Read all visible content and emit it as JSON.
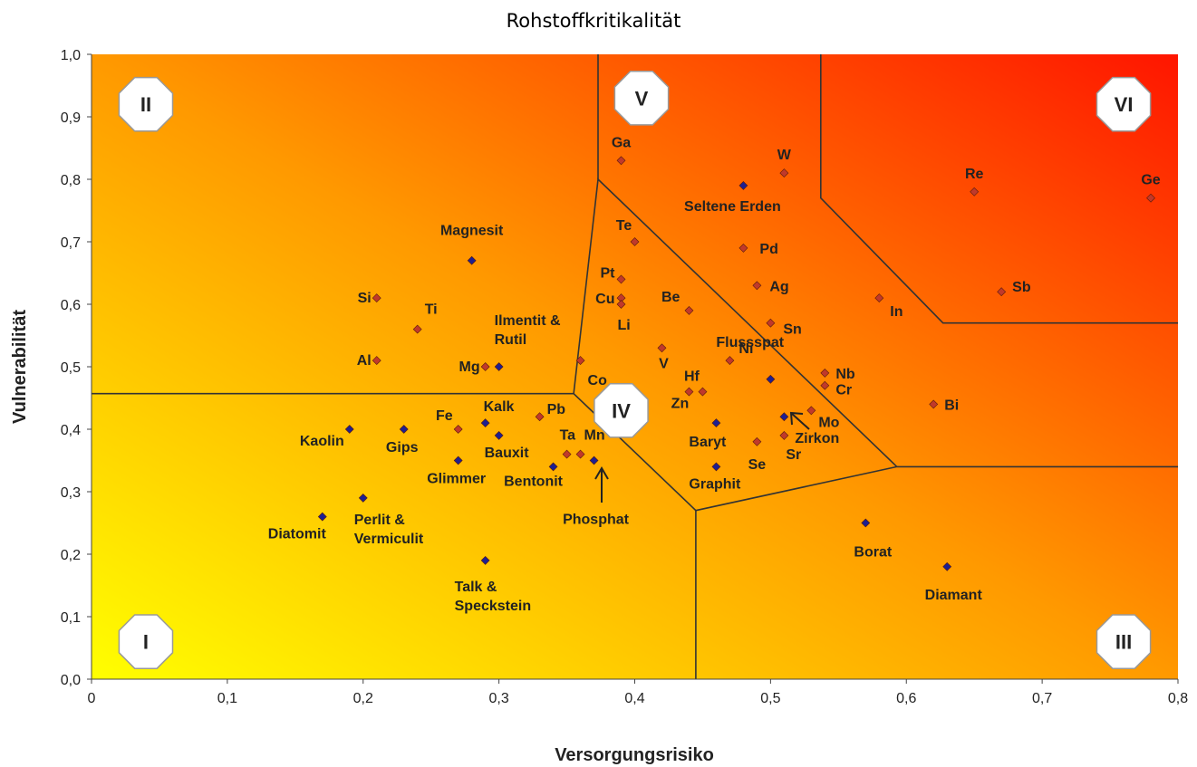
{
  "chart_data": {
    "type": "scatter",
    "title": "Rohstoffkritikalität",
    "xlabel": "Versorgungsrisiko",
    "ylabel": "Vulnerabilität",
    "xlim": [
      0,
      0.8
    ],
    "ylim": [
      0,
      1.0
    ],
    "xticks": [
      "0",
      "0,1",
      "0,2",
      "0,3",
      "0,4",
      "0,5",
      "0,6",
      "0,7",
      "0,8"
    ],
    "yticks": [
      "0,0",
      "0,1",
      "0,2",
      "0,3",
      "0,4",
      "0,5",
      "0,6",
      "0,7",
      "0,8",
      "0,9",
      "1,0"
    ],
    "background": {
      "low_color": "#ffff00",
      "mid_color": "#ff9900",
      "high_color": "#ff1500"
    },
    "marker_colors": {
      "red": "#c0392b",
      "blue": "#1f1f8f"
    },
    "zones": [
      {
        "label": "I",
        "x": 0.04,
        "y": 0.06
      },
      {
        "label": "II",
        "x": 0.04,
        "y": 0.92
      },
      {
        "label": "III",
        "x": 0.76,
        "y": 0.06
      },
      {
        "label": "IV",
        "x": 0.39,
        "y": 0.43
      },
      {
        "label": "V",
        "x": 0.405,
        "y": 0.93
      },
      {
        "label": "VI",
        "x": 0.76,
        "y": 0.92
      }
    ],
    "boundaries": [
      [
        [
          0,
          0.457
        ],
        [
          0.355,
          0.457
        ],
        [
          0.445,
          0.27
        ],
        [
          0.593,
          0.34
        ],
        [
          0.8,
          0.34
        ]
      ],
      [
        [
          0.355,
          0.457
        ],
        [
          0.373,
          0.8
        ],
        [
          0.593,
          0.34
        ]
      ],
      [
        [
          0.373,
          0.8
        ],
        [
          0.373,
          1.0
        ]
      ],
      [
        [
          0.445,
          0.27
        ],
        [
          0.445,
          0.0
        ]
      ],
      [
        [
          0.537,
          1.0
        ],
        [
          0.537,
          0.77
        ],
        [
          0.627,
          0.57
        ],
        [
          0.8,
          0.57
        ]
      ]
    ],
    "series": [
      {
        "marker": "red",
        "points": [
          {
            "label": "Ga",
            "x": 0.39,
            "y": 0.83
          },
          {
            "label": "W",
            "x": 0.51,
            "y": 0.81
          },
          {
            "label": "Re",
            "x": 0.65,
            "y": 0.78
          },
          {
            "label": "Ge",
            "x": 0.78,
            "y": 0.77
          },
          {
            "label": "Te",
            "x": 0.4,
            "y": 0.7
          },
          {
            "label": "Pd",
            "x": 0.48,
            "y": 0.69
          },
          {
            "label": "Pt",
            "x": 0.39,
            "y": 0.64
          },
          {
            "label": "Ag",
            "x": 0.49,
            "y": 0.63
          },
          {
            "label": "Sb",
            "x": 0.67,
            "y": 0.62
          },
          {
            "label": "Si",
            "x": 0.21,
            "y": 0.61
          },
          {
            "label": "Cu",
            "x": 0.39,
            "y": 0.61
          },
          {
            "label": "In",
            "x": 0.58,
            "y": 0.61
          },
          {
            "label": "Li",
            "x": 0.39,
            "y": 0.6
          },
          {
            "label": "Be",
            "x": 0.44,
            "y": 0.59
          },
          {
            "label": "Sn",
            "x": 0.5,
            "y": 0.57
          },
          {
            "label": "Ti",
            "x": 0.24,
            "y": 0.56
          },
          {
            "label": "V",
            "x": 0.42,
            "y": 0.53
          },
          {
            "label": "Al",
            "x": 0.21,
            "y": 0.51
          },
          {
            "label": "Co",
            "x": 0.36,
            "y": 0.51
          },
          {
            "label": "Ni",
            "x": 0.47,
            "y": 0.51
          },
          {
            "label": "Mg",
            "x": 0.29,
            "y": 0.5
          },
          {
            "label": "Nb",
            "x": 0.54,
            "y": 0.49
          },
          {
            "label": "Cr",
            "x": 0.54,
            "y": 0.47
          },
          {
            "label": "Zn",
            "x": 0.44,
            "y": 0.46
          },
          {
            "label": "Hf",
            "x": 0.45,
            "y": 0.46
          },
          {
            "label": "Bi",
            "x": 0.62,
            "y": 0.44
          },
          {
            "label": "Mo",
            "x": 0.53,
            "y": 0.43
          },
          {
            "label": "Pb",
            "x": 0.33,
            "y": 0.42
          },
          {
            "label": "Fe",
            "x": 0.27,
            "y": 0.4
          },
          {
            "label": "Sr",
            "x": 0.51,
            "y": 0.39
          },
          {
            "label": "Se",
            "x": 0.49,
            "y": 0.38
          },
          {
            "label": "Ta",
            "x": 0.35,
            "y": 0.36
          },
          {
            "label": "Mn",
            "x": 0.36,
            "y": 0.36
          }
        ]
      },
      {
        "marker": "blue",
        "points": [
          {
            "label": "Seltene Erden",
            "x": 0.48,
            "y": 0.79
          },
          {
            "label": "Magnesit",
            "x": 0.28,
            "y": 0.67
          },
          {
            "label": "Ilmentit & Rutil",
            "x": 0.3,
            "y": 0.5
          },
          {
            "label": "Flussspat",
            "x": 0.5,
            "y": 0.48
          },
          {
            "label": "Zirkon",
            "x": 0.51,
            "y": 0.42
          },
          {
            "label": "Kalk",
            "x": 0.29,
            "y": 0.41
          },
          {
            "label": "Baryt",
            "x": 0.46,
            "y": 0.41
          },
          {
            "label": "Kaolin",
            "x": 0.19,
            "y": 0.4
          },
          {
            "label": "Gips",
            "x": 0.23,
            "y": 0.4
          },
          {
            "label": "Bauxit",
            "x": 0.3,
            "y": 0.39
          },
          {
            "label": "Glimmer",
            "x": 0.27,
            "y": 0.35
          },
          {
            "label": "Phosphat",
            "x": 0.37,
            "y": 0.35
          },
          {
            "label": "Bentonit",
            "x": 0.34,
            "y": 0.34
          },
          {
            "label": "Graphit",
            "x": 0.46,
            "y": 0.34
          },
          {
            "label": "Perlit & Vermiculit",
            "x": 0.2,
            "y": 0.29
          },
          {
            "label": "Diatomit",
            "x": 0.17,
            "y": 0.26
          },
          {
            "label": "Borat",
            "x": 0.57,
            "y": 0.25
          },
          {
            "label": "Talk & Speckstein",
            "x": 0.29,
            "y": 0.19
          },
          {
            "label": "Diamant",
            "x": 0.63,
            "y": 0.18
          }
        ]
      }
    ]
  }
}
